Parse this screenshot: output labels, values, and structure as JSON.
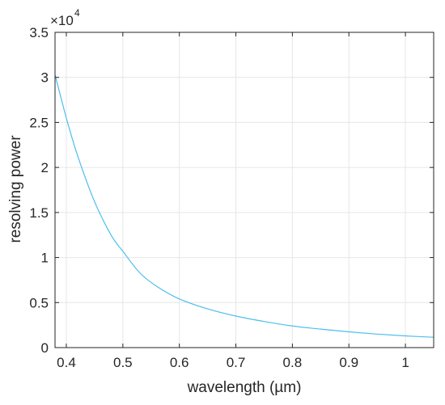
{
  "chart_data": {
    "type": "line",
    "title": "",
    "xlabel": "wavelength (µm)",
    "ylabel": "resolving power",
    "xlim": [
      0.38,
      1.05
    ],
    "ylim": [
      0,
      35000
    ],
    "y_exponent_label": {
      "base": "×10",
      "power": "4"
    },
    "x_tick_labels": [
      "0.4",
      "0.5",
      "0.6",
      "0.7",
      "0.8",
      "0.9",
      "1"
    ],
    "x_ticks": [
      0.4,
      0.5,
      0.6,
      0.7,
      0.8,
      0.9,
      1.0
    ],
    "y_tick_labels": [
      "0",
      "0.5",
      "1",
      "1.5",
      "2",
      "2.5",
      "3",
      "3.5"
    ],
    "y_ticks": [
      0,
      5000,
      10000,
      15000,
      20000,
      25000,
      30000,
      35000
    ],
    "grid": true,
    "line_color": "#4dbeee",
    "series": [
      {
        "x": [
          0.38,
          0.4,
          0.42,
          0.45,
          0.48,
          0.5,
          0.53,
          0.56,
          0.6,
          0.65,
          0.7,
          0.75,
          0.8,
          0.85,
          0.9,
          0.95,
          1.0,
          1.05
        ],
        "values": [
          30300,
          25500,
          21300,
          16200,
          12400,
          10700,
          8300,
          6800,
          5400,
          4300,
          3500,
          2900,
          2400,
          2050,
          1750,
          1500,
          1300,
          1150
        ]
      }
    ]
  }
}
